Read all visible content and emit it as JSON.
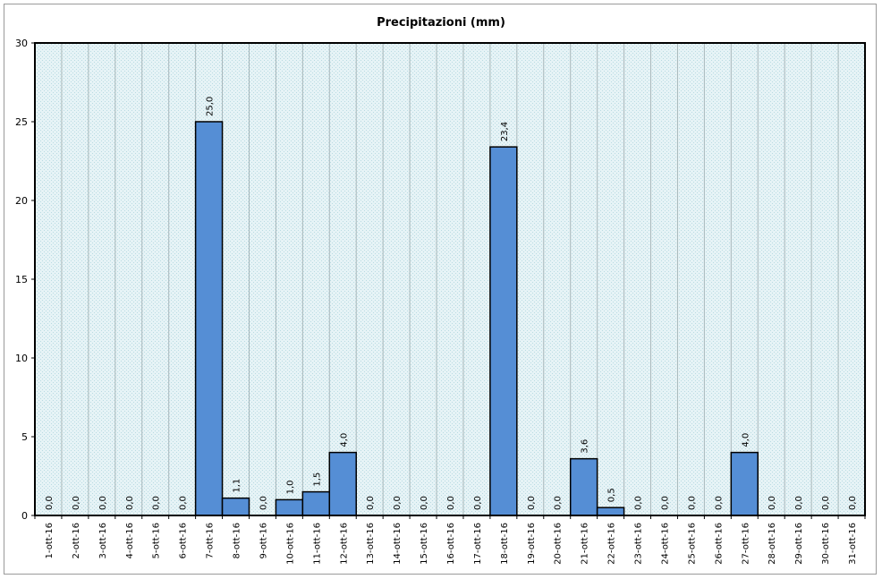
{
  "chart_data": {
    "type": "bar",
    "title": "Precipitazioni (mm)",
    "xlabel": "",
    "ylabel": "",
    "ylim": [
      0,
      30
    ],
    "yticks": [
      0,
      5,
      10,
      15,
      20,
      25,
      30
    ],
    "grid": "vertical",
    "legend": "none",
    "categories": [
      "1-ott-16",
      "2-ott-16",
      "3-ott-16",
      "4-ott-16",
      "5-ott-16",
      "6-ott-16",
      "7-ott-16",
      "8-ott-16",
      "9-ott-16",
      "10-ott-16",
      "11-ott-16",
      "12-ott-16",
      "13-ott-16",
      "14-ott-16",
      "15-ott-16",
      "16-ott-16",
      "17-ott-16",
      "18-ott-16",
      "19-ott-16",
      "20-ott-16",
      "21-ott-16",
      "22-ott-16",
      "23-ott-16",
      "24-ott-16",
      "25-ott-16",
      "26-ott-16",
      "27-ott-16",
      "28-ott-16",
      "29-ott-16",
      "30-ott-16",
      "31-ott-16"
    ],
    "values": [
      0,
      0,
      0,
      0,
      0,
      0,
      25.0,
      1.1,
      0,
      1.0,
      1.5,
      4.0,
      0,
      0,
      0,
      0,
      0,
      23.4,
      0,
      0,
      3.6,
      0.5,
      0,
      0,
      0,
      0,
      4.0,
      0,
      0,
      0,
      0
    ],
    "data_labels": [
      "0,0",
      "0,0",
      "0,0",
      "0,0",
      "0,0",
      "0,0",
      "25,0",
      "1,1",
      "0,0",
      "1,0",
      "1,5",
      "4,0",
      "0,0",
      "0,0",
      "0,0",
      "0,0",
      "0,0",
      "23,4",
      "0,0",
      "0,0",
      "3,6",
      "0,5",
      "0,0",
      "0,0",
      "0,0",
      "0,0",
      "4,0",
      "0,0",
      "0,0",
      "0,0",
      "0,0"
    ],
    "colors": {
      "bar_fill": "#558ed5",
      "bar_stroke": "#000000",
      "plot_background": "#dceef2",
      "grid": "#a9b8bb"
    }
  }
}
